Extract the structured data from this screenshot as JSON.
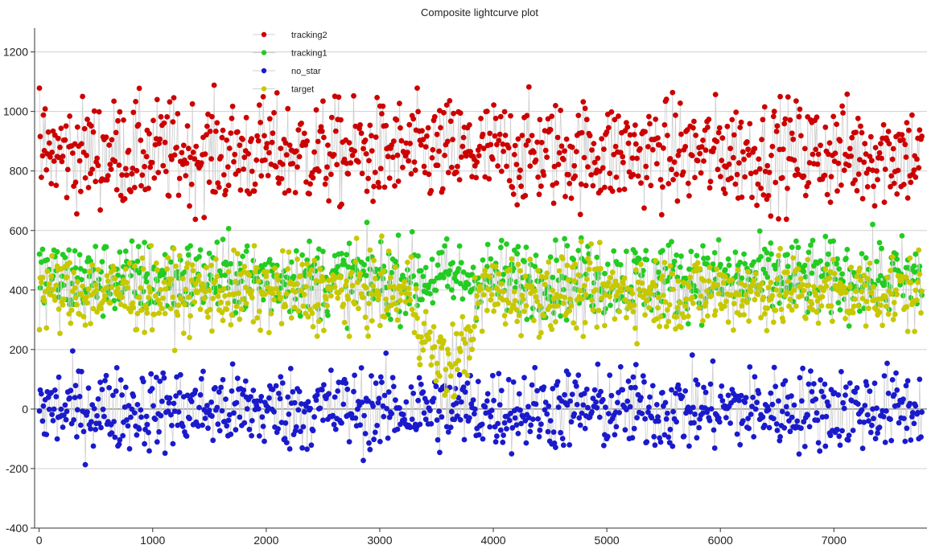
{
  "chart_data": {
    "type": "scatter",
    "title": "Composite lightcurve plot",
    "xlabel": "",
    "ylabel": "",
    "xlim": [
      -40,
      7820
    ],
    "ylim": [
      -400,
      1280
    ],
    "xticks": [
      0,
      1000,
      2000,
      3000,
      4000,
      5000,
      6000,
      7000,
      8000
    ],
    "yticks": [
      -400,
      -200,
      0,
      200,
      400,
      600,
      800,
      1000,
      1200
    ],
    "grid": true,
    "legend_placement": "top-left",
    "n_points": 7780,
    "series": [
      {
        "name": "tracking2",
        "color": "#cc0000",
        "marker": "circle",
        "line": "grey",
        "mean": 860,
        "spread": 90,
        "min": 580,
        "max": 1205
      },
      {
        "name": "tracking1",
        "color": "#22cc22",
        "marker": "circle",
        "line": "grey",
        "mean": 440,
        "spread": 65,
        "min": 180,
        "max": 680
      },
      {
        "name": "no_star",
        "color": "#1a1acc",
        "marker": "circle",
        "line": "grey",
        "mean": 0,
        "spread": 70,
        "min": -330,
        "max": 220
      },
      {
        "name": "target",
        "color": "#c8c800",
        "marker": "circle",
        "line": "grey",
        "mean": 390,
        "spread": 65,
        "min": -30,
        "max": 610,
        "dip": {
          "x_range": [
            3280,
            3900
          ],
          "level": 150
        }
      }
    ]
  }
}
